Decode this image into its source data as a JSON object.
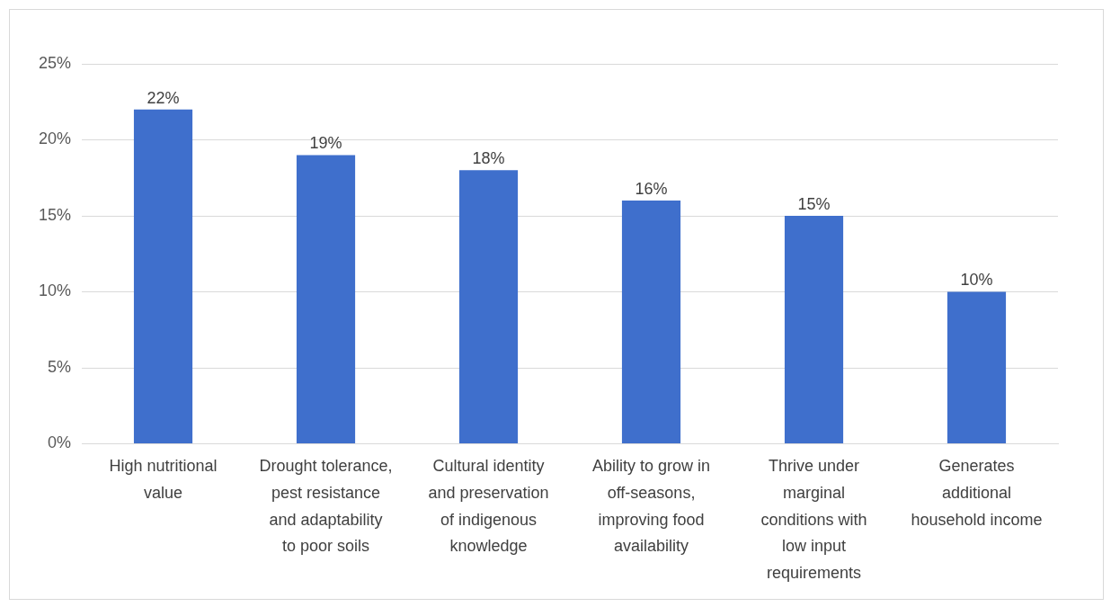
{
  "chart_data": {
    "type": "bar",
    "categories": [
      "High nutritional value",
      "Drought tolerance, pest resistance and adaptability to poor soils",
      "Cultural identity and preservation of indigenous knowledge",
      "Ability to grow in off-seasons, improving food availability",
      "Thrive under marginal conditions with low input requirements",
      "Generates additional household income"
    ],
    "values": [
      22,
      19,
      18,
      16,
      15,
      10
    ],
    "value_labels": [
      "22%",
      "19%",
      "18%",
      "16%",
      "15%",
      "10%"
    ],
    "color": "#3f6fcc",
    "ylim": [
      0,
      25
    ],
    "yticks": [
      {
        "value": 0,
        "label": "0%"
      },
      {
        "value": 5,
        "label": "5%"
      },
      {
        "value": 10,
        "label": "10%"
      },
      {
        "value": 15,
        "label": "15%"
      },
      {
        "value": 20,
        "label": "20%"
      },
      {
        "value": 25,
        "label": "25%"
      }
    ],
    "grid": "y",
    "legend": false
  }
}
